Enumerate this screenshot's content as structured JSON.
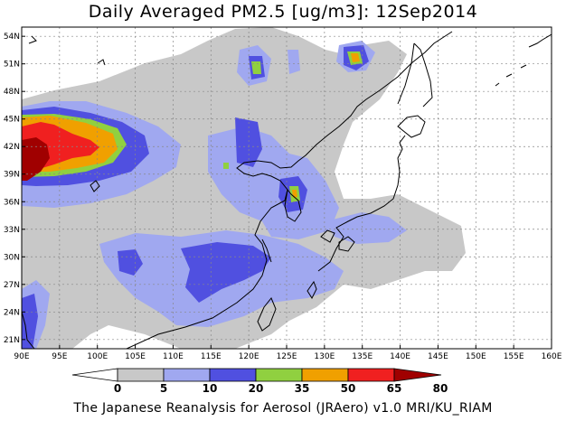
{
  "title": "Daily Averaged PM2.5 [ug/m3]: 12Sep2014",
  "footer": "The Japanese Reanalysis for Aerosol (JRAero) v1.0 MRI/KU_RIAM",
  "map": {
    "lon_range": [
      90,
      160
    ],
    "lat_range": [
      20,
      55
    ],
    "lon_ticks": [
      "90E",
      "95E",
      "100E",
      "105E",
      "110E",
      "115E",
      "120E",
      "125E",
      "130E",
      "135E",
      "140E",
      "145E",
      "150E",
      "155E",
      "160E"
    ],
    "lat_ticks": [
      "21N",
      "24N",
      "27N",
      "30N",
      "33N",
      "36N",
      "39N",
      "42N",
      "45N",
      "48N",
      "51N",
      "54N"
    ]
  },
  "colorbar": {
    "labels": [
      "0",
      "5",
      "10",
      "20",
      "35",
      "50",
      "65",
      "80"
    ],
    "colors": [
      "#ffffff",
      "#c8c8c8",
      "#a0a8f0",
      "#5050e0",
      "#90d040",
      "#f0a000",
      "#f02020",
      "#a00000"
    ]
  }
}
